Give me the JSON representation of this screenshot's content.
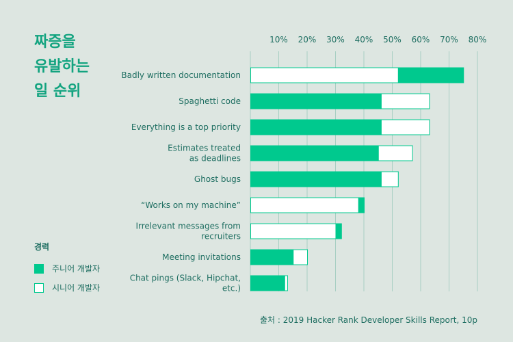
{
  "title": "짜증을\n유발하는\n일 순위",
  "legend_title": "경력",
  "source": "출처 : 2019 Hacker Rank Developer Skills Report, 10p",
  "colors": {
    "junior": "#00c98e",
    "senior": "#ffffff",
    "text": "#1e6e61",
    "grid": "#a8cfc3",
    "background": "#dde6e1"
  },
  "chart_data": {
    "type": "bar",
    "orientation": "horizontal",
    "categories": [
      "Badly written documentation",
      "Spaghetti code",
      "Everything is a top priority",
      "Estimates treated\nas deadlines",
      "Ghost bugs",
      "“Works on my machine”",
      "Irrelevant messages from\nrecruiters",
      "Meeting invitations",
      "Chat pings (Slack, Hipchat,\netc.)"
    ],
    "series": [
      {
        "name": "주니어 개발자",
        "color": "#00c98e",
        "values": [
          75,
          46,
          46,
          45,
          46,
          40,
          32,
          15,
          12
        ]
      },
      {
        "name": "시니어 개발자",
        "color": "#ffffff",
        "values": [
          52,
          63,
          63,
          57,
          52,
          38,
          30,
          20,
          13
        ]
      }
    ],
    "x_ticks": [
      "10%",
      "20%",
      "30%",
      "40%",
      "50%",
      "60%",
      "70%",
      "80%"
    ],
    "xlim": [
      0,
      80
    ],
    "grid": true,
    "legend_position": "left-bottom"
  }
}
